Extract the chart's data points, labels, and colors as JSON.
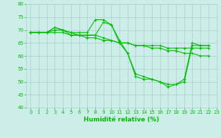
{
  "xlabel": "Humidité relative (%)",
  "background_color": "#cceee8",
  "grid_color": "#aacccc",
  "line_color": "#00bb00",
  "xlim": [
    -0.5,
    23
  ],
  "ylim": [
    40,
    80
  ],
  "yticks": [
    40,
    45,
    50,
    55,
    60,
    65,
    70,
    75,
    80
  ],
  "xticks": [
    0,
    1,
    2,
    3,
    4,
    5,
    6,
    7,
    8,
    9,
    10,
    11,
    12,
    13,
    14,
    15,
    16,
    17,
    18,
    19,
    20,
    21,
    22,
    23
  ],
  "series": [
    [
      69,
      69,
      69,
      71,
      70,
      68,
      68,
      68,
      68,
      73,
      72,
      65,
      61,
      52,
      51,
      51,
      50,
      48,
      49,
      50,
      64,
      64,
      64
    ],
    [
      69,
      69,
      69,
      71,
      70,
      69,
      69,
      69,
      74,
      74,
      72,
      66,
      61,
      53,
      52,
      51,
      50,
      49,
      49,
      51,
      65,
      64,
      64
    ],
    [
      69,
      69,
      69,
      69,
      69,
      68,
      68,
      67,
      67,
      66,
      66,
      65,
      65,
      64,
      64,
      64,
      64,
      63,
      63,
      63,
      63,
      63,
      63
    ],
    [
      69,
      69,
      69,
      70,
      70,
      69,
      68,
      68,
      68,
      67,
      66,
      65,
      65,
      64,
      64,
      63,
      63,
      62,
      62,
      61,
      61,
      60,
      60
    ]
  ]
}
